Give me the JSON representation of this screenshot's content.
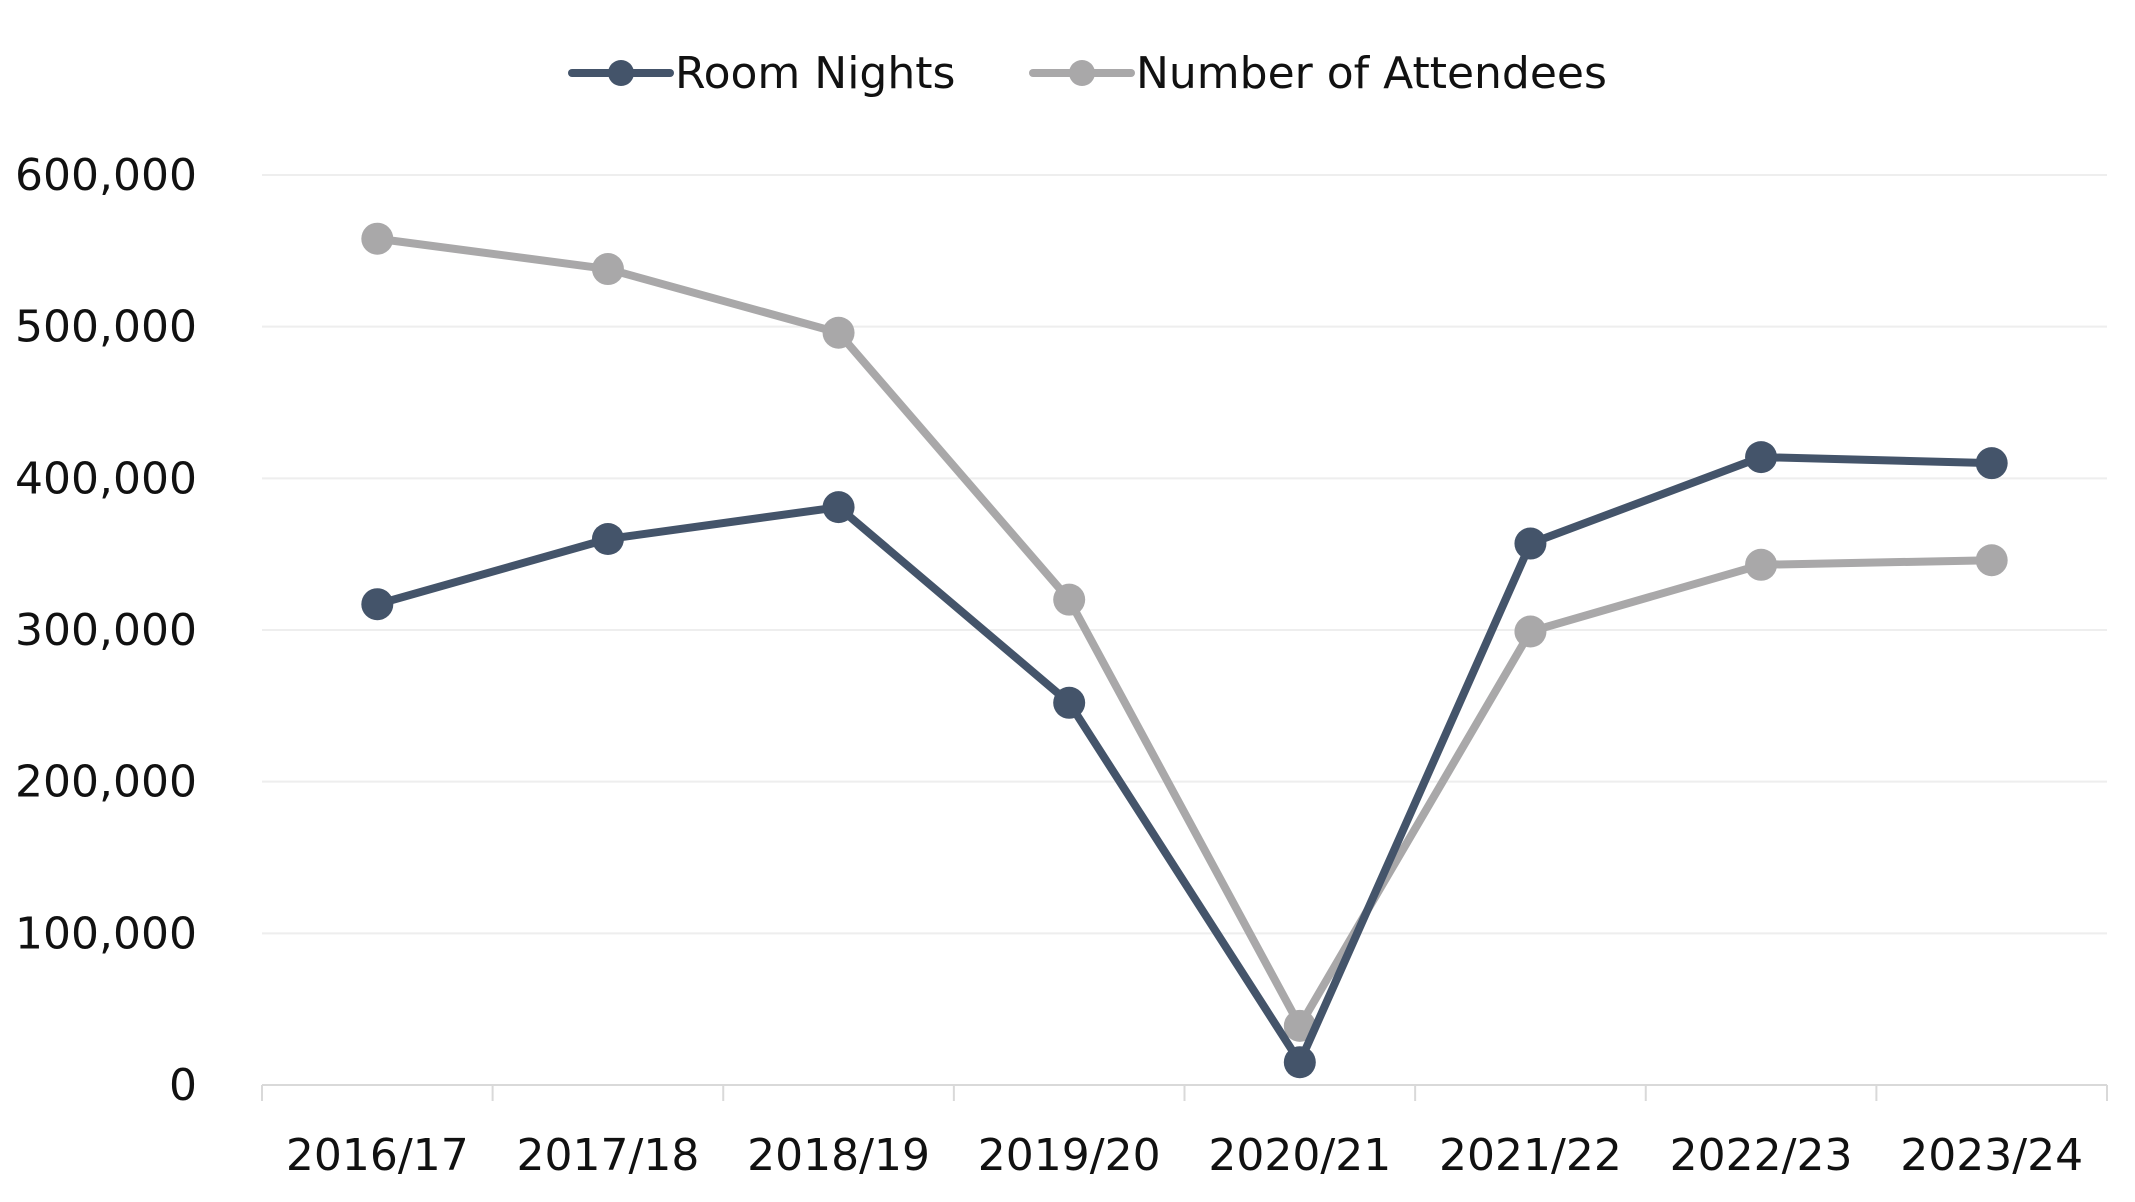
{
  "chart_data": {
    "type": "line",
    "categories": [
      "2016/17",
      "2017/18",
      "2018/19",
      "2019/20",
      "2020/21",
      "2021/22",
      "2022/23",
      "2023/24"
    ],
    "series": [
      {
        "name": "Room Nights",
        "color": "#44546a",
        "values": [
          317000,
          360000,
          381000,
          252000,
          15000,
          357000,
          414000,
          410000
        ]
      },
      {
        "name": "Number of Attendees",
        "color": "#a9a8a9",
        "values": [
          558000,
          538000,
          496000,
          320000,
          39000,
          299000,
          343000,
          346000
        ]
      }
    ],
    "y_ticks": [
      "0",
      "100,000",
      "200,000",
      "300,000",
      "400,000",
      "500,000",
      "600,000"
    ],
    "ylim": [
      0,
      600000
    ],
    "grid": true,
    "legend_position": "top-center"
  }
}
